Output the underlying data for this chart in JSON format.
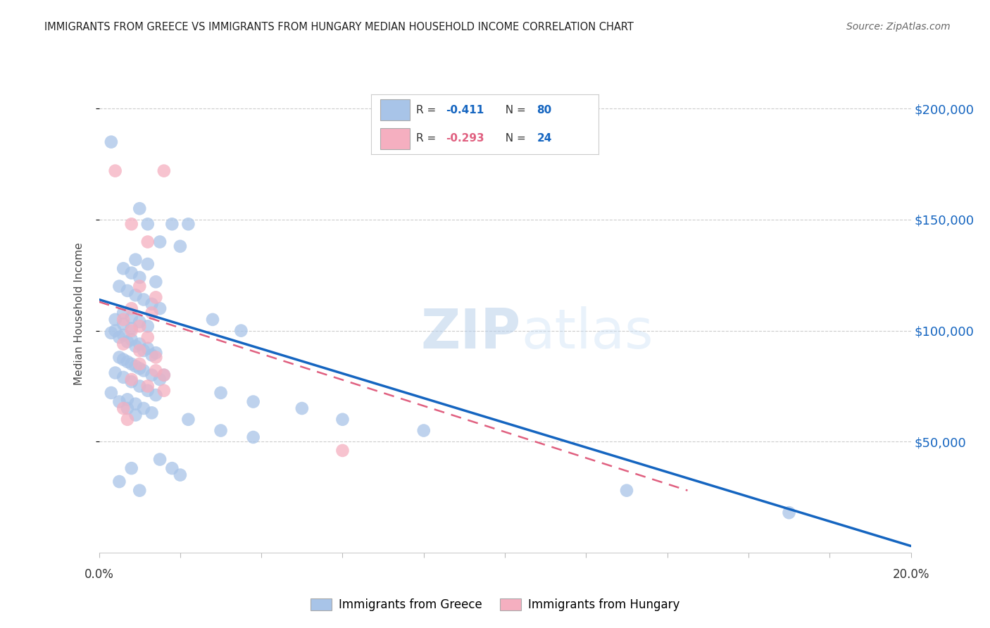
{
  "title": "IMMIGRANTS FROM GREECE VS IMMIGRANTS FROM HUNGARY MEDIAN HOUSEHOLD INCOME CORRELATION CHART",
  "source": "Source: ZipAtlas.com",
  "ylabel": "Median Household Income",
  "xlim": [
    0.0,
    0.2
  ],
  "ylim": [
    0,
    215000
  ],
  "watermark_zip": "ZIP",
  "watermark_atlas": "atlas",
  "legend_text1": "R =  -0.411   N = 80",
  "legend_text2": "R =  -0.293   N = 24",
  "greece_color": "#a8c4e8",
  "hungary_color": "#f5afc0",
  "greece_line_color": "#1565c0",
  "hungary_line_color": "#e06080",
  "yticks": [
    50000,
    100000,
    150000,
    200000
  ],
  "ytick_labels": [
    "$50,000",
    "$100,000",
    "$150,000",
    "$200,000"
  ],
  "xtick_positions": [
    0.0,
    0.02,
    0.04,
    0.06,
    0.08,
    0.1,
    0.12,
    0.14,
    0.16,
    0.18,
    0.2
  ],
  "greece_scatter": [
    [
      0.003,
      185000
    ],
    [
      0.01,
      155000
    ],
    [
      0.012,
      148000
    ],
    [
      0.018,
      148000
    ],
    [
      0.022,
      148000
    ],
    [
      0.015,
      140000
    ],
    [
      0.02,
      138000
    ],
    [
      0.009,
      132000
    ],
    [
      0.012,
      130000
    ],
    [
      0.006,
      128000
    ],
    [
      0.008,
      126000
    ],
    [
      0.01,
      124000
    ],
    [
      0.014,
      122000
    ],
    [
      0.005,
      120000
    ],
    [
      0.007,
      118000
    ],
    [
      0.009,
      116000
    ],
    [
      0.011,
      114000
    ],
    [
      0.013,
      112000
    ],
    [
      0.015,
      110000
    ],
    [
      0.006,
      108000
    ],
    [
      0.008,
      106000
    ],
    [
      0.01,
      104000
    ],
    [
      0.012,
      102000
    ],
    [
      0.004,
      100000
    ],
    [
      0.006,
      98000
    ],
    [
      0.008,
      96000
    ],
    [
      0.01,
      94000
    ],
    [
      0.012,
      92000
    ],
    [
      0.014,
      90000
    ],
    [
      0.005,
      88000
    ],
    [
      0.007,
      86000
    ],
    [
      0.009,
      84000
    ],
    [
      0.011,
      82000
    ],
    [
      0.013,
      80000
    ],
    [
      0.015,
      78000
    ],
    [
      0.004,
      105000
    ],
    [
      0.006,
      103000
    ],
    [
      0.008,
      101000
    ],
    [
      0.003,
      99000
    ],
    [
      0.005,
      97000
    ],
    [
      0.007,
      95000
    ],
    [
      0.009,
      93000
    ],
    [
      0.011,
      91000
    ],
    [
      0.013,
      89000
    ],
    [
      0.006,
      87000
    ],
    [
      0.008,
      85000
    ],
    [
      0.01,
      83000
    ],
    [
      0.004,
      81000
    ],
    [
      0.006,
      79000
    ],
    [
      0.008,
      77000
    ],
    [
      0.01,
      75000
    ],
    [
      0.012,
      73000
    ],
    [
      0.014,
      71000
    ],
    [
      0.007,
      69000
    ],
    [
      0.009,
      67000
    ],
    [
      0.011,
      65000
    ],
    [
      0.013,
      63000
    ],
    [
      0.003,
      72000
    ],
    [
      0.005,
      68000
    ],
    [
      0.007,
      65000
    ],
    [
      0.009,
      62000
    ],
    [
      0.016,
      80000
    ],
    [
      0.028,
      105000
    ],
    [
      0.035,
      100000
    ],
    [
      0.03,
      72000
    ],
    [
      0.038,
      68000
    ],
    [
      0.022,
      60000
    ],
    [
      0.03,
      55000
    ],
    [
      0.038,
      52000
    ],
    [
      0.05,
      65000
    ],
    [
      0.06,
      60000
    ],
    [
      0.08,
      55000
    ],
    [
      0.13,
      28000
    ],
    [
      0.17,
      18000
    ],
    [
      0.015,
      42000
    ],
    [
      0.018,
      38000
    ],
    [
      0.02,
      35000
    ],
    [
      0.008,
      38000
    ],
    [
      0.005,
      32000
    ],
    [
      0.01,
      28000
    ]
  ],
  "hungary_scatter": [
    [
      0.004,
      172000
    ],
    [
      0.016,
      172000
    ],
    [
      0.008,
      148000
    ],
    [
      0.012,
      140000
    ],
    [
      0.01,
      120000
    ],
    [
      0.014,
      115000
    ],
    [
      0.008,
      110000
    ],
    [
      0.013,
      108000
    ],
    [
      0.006,
      105000
    ],
    [
      0.01,
      102000
    ],
    [
      0.008,
      100000
    ],
    [
      0.012,
      97000
    ],
    [
      0.006,
      94000
    ],
    [
      0.01,
      91000
    ],
    [
      0.014,
      88000
    ],
    [
      0.01,
      85000
    ],
    [
      0.014,
      82000
    ],
    [
      0.008,
      78000
    ],
    [
      0.012,
      75000
    ],
    [
      0.016,
      73000
    ],
    [
      0.016,
      80000
    ],
    [
      0.06,
      46000
    ],
    [
      0.006,
      65000
    ],
    [
      0.007,
      60000
    ]
  ],
  "greece_trend_x": [
    0.0,
    0.2
  ],
  "greece_trend_y": [
    114000,
    3000
  ],
  "hungary_trend_x": [
    0.0,
    0.145
  ],
  "hungary_trend_y": [
    113000,
    28000
  ]
}
